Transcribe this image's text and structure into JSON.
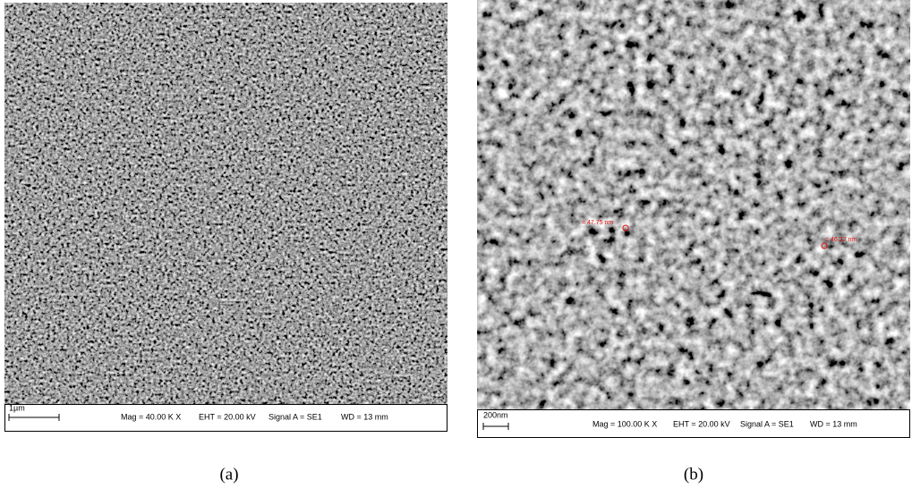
{
  "panels": [
    {
      "scale_bar": "1µm",
      "mag": "Mag = 40.00 K X",
      "eht": "EHT = 20.00 kV",
      "signal": "Signal A = SE1",
      "wd": "WD =  13 mm",
      "caption": "(a)"
    },
    {
      "scale_bar": "200nm",
      "mag": "Mag = 100.00 K X",
      "eht": "EHT = 20.00 kV",
      "signal": "Signal A = SE1",
      "wd": "WD =  13 mm",
      "caption": "(b)",
      "measurements": [
        "= 47.75 nm",
        "= 46.22 nm"
      ]
    }
  ]
}
